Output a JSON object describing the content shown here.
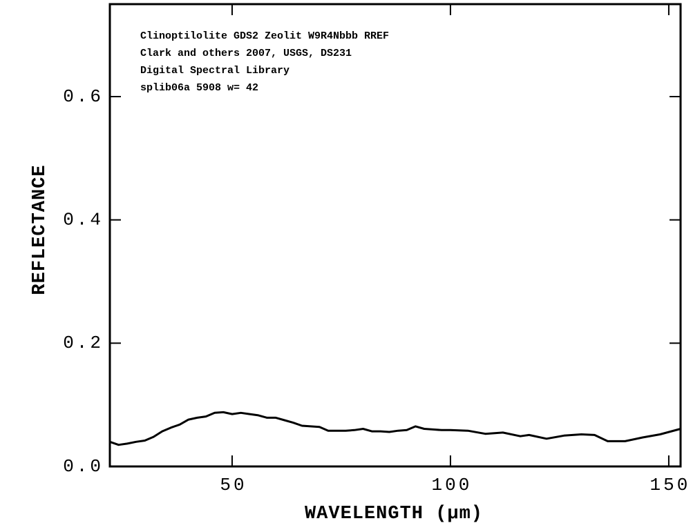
{
  "chart_data": {
    "type": "line",
    "annotations": [
      "Clinoptilolite GDS2 Zeolit W9R4Nbbb RREF",
      "Clark and others 2007, USGS, DS231",
      "Digital Spectral Library",
      "splib06a 5908 w= 42"
    ],
    "x_label": "WAVELENGTH (μm)",
    "y_label": "REFLECTANCE",
    "x": [
      22,
      24,
      26,
      28,
      30,
      32,
      34,
      36,
      38,
      40,
      42,
      44,
      46,
      48,
      50,
      52,
      54,
      56,
      58,
      60,
      62,
      64,
      66,
      68,
      70,
      72,
      74,
      76,
      78,
      80,
      82,
      84,
      86,
      88,
      90,
      92,
      94,
      96,
      98,
      100,
      104,
      108,
      112,
      116,
      118,
      122,
      126,
      130,
      133,
      136,
      140,
      144,
      148,
      152.7
    ],
    "series": [
      {
        "color": "#000000",
        "values": [
          0.04,
          0.035,
          0.037,
          0.04,
          0.042,
          0.048,
          0.057,
          0.063,
          0.068,
          0.076,
          0.079,
          0.081,
          0.087,
          0.088,
          0.085,
          0.087,
          0.085,
          0.083,
          0.079,
          0.079,
          0.075,
          0.071,
          0.066,
          0.065,
          0.064,
          0.058,
          0.058,
          0.058,
          0.059,
          0.061,
          0.057,
          0.057,
          0.056,
          0.058,
          0.059,
          0.065,
          0.061,
          0.06,
          0.059,
          0.059,
          0.058,
          0.053,
          0.055,
          0.049,
          0.051,
          0.045,
          0.05,
          0.052,
          0.051,
          0.041,
          0.041,
          0.047,
          0.052,
          0.061
        ]
      }
    ],
    "xlim": [
      22,
      152.7
    ],
    "ylim": [
      0,
      0.75
    ],
    "xticks": [
      50,
      100,
      150
    ],
    "yticks": [
      {
        "value": 0,
        "label": "0.0"
      },
      0.2,
      0.4,
      0.6
    ]
  }
}
